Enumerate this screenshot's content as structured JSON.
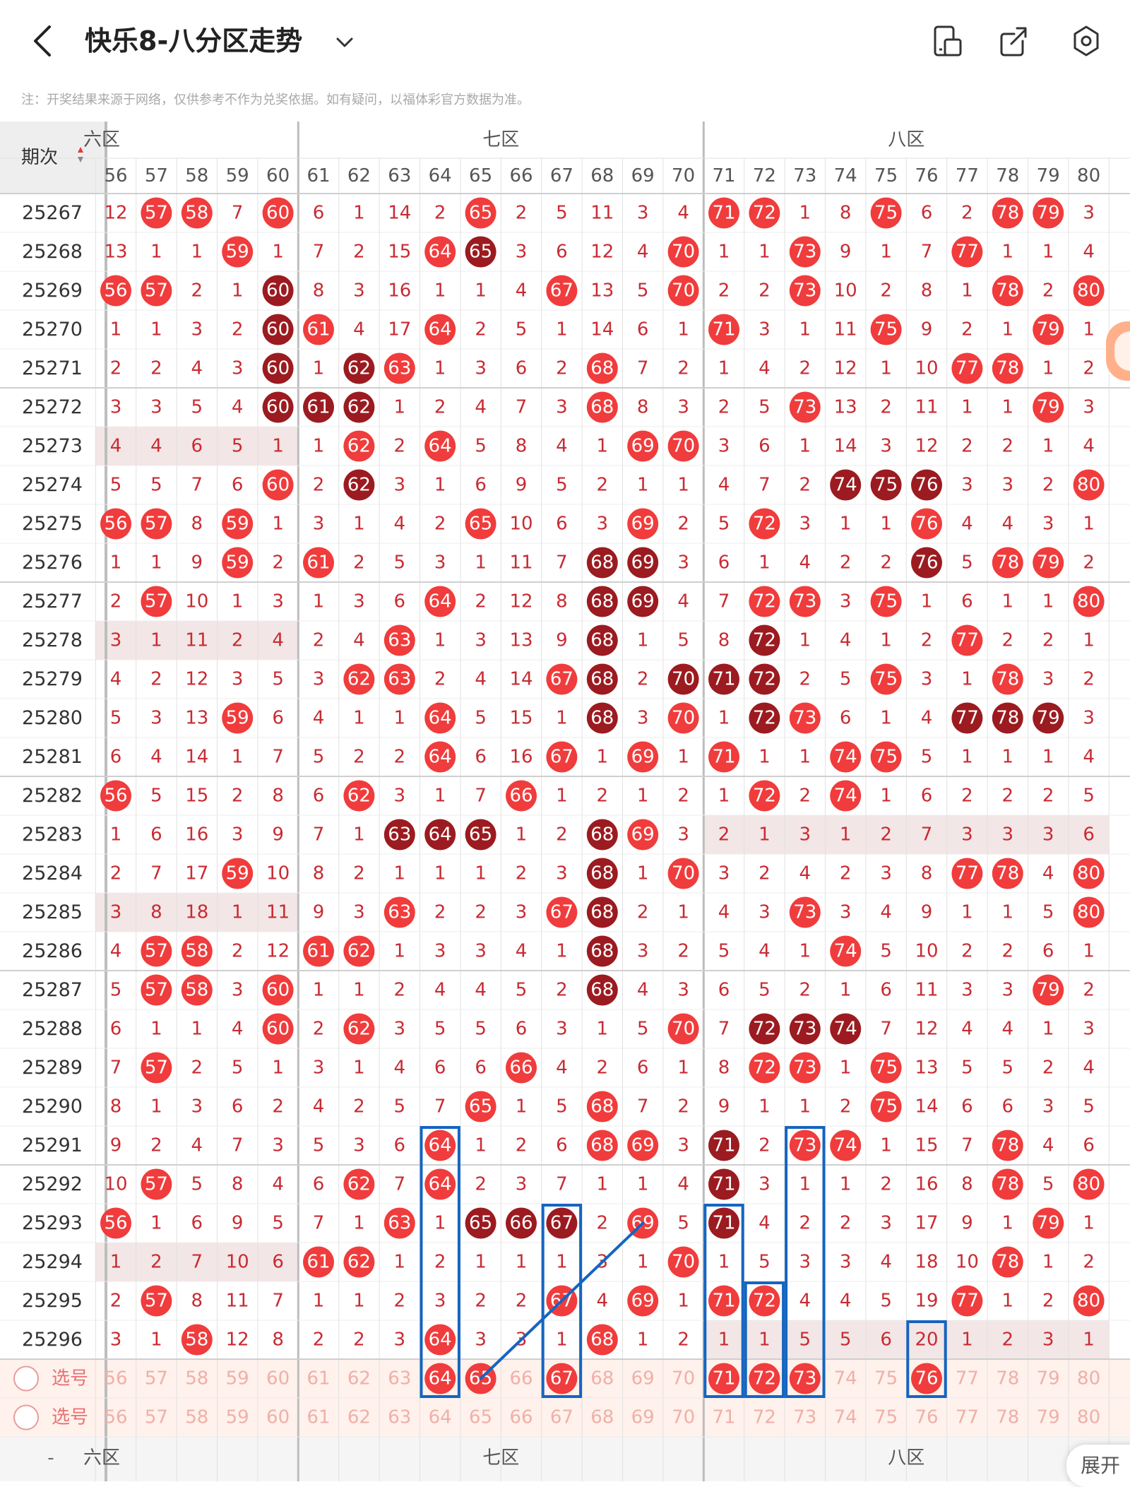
{
  "header": {
    "title": "快乐8-八分区走势",
    "back_icon": "chevron-left-icon",
    "dropdown_icon": "chevron-down-icon",
    "actions": [
      {
        "name": "layout-toggle-button",
        "icon": "phone-layout-icon"
      },
      {
        "name": "share-button",
        "icon": "share-arrow-icon"
      },
      {
        "name": "settings-button",
        "icon": "settings-hexagon-icon"
      }
    ]
  },
  "disclaimer": "注：开奖结果来源于网络，仅供参考不作为兑奖依据。如有疑问，以福体彩官方数据为准。",
  "table": {
    "period_header": "期次",
    "zones": [
      {
        "label": "六区",
        "shown": "六区",
        "start": 56
      },
      {
        "label": "七区",
        "shown": "七区",
        "start": 61
      },
      {
        "label": "八区",
        "shown": "八区",
        "start": 71
      }
    ],
    "columns": [
      "56",
      "57",
      "58",
      "59",
      "60",
      "61",
      "62",
      "63",
      "64",
      "65",
      "66",
      "67",
      "68",
      "69",
      "70",
      "71",
      "72",
      "73",
      "74",
      "75",
      "76",
      "77",
      "78",
      "79",
      "80"
    ],
    "rows": [
      {
        "period": "25267",
        "cells": [
          "12",
          "57",
          "58",
          "7",
          "60",
          "6",
          "1",
          "14",
          "2",
          "65",
          "2",
          "5",
          "11",
          "3",
          "4",
          "71",
          "72",
          "1",
          "8",
          "75",
          "6",
          "2",
          "78",
          "79",
          "3"
        ]
      },
      {
        "period": "25268",
        "cells": [
          "13",
          "1",
          "1",
          "59",
          "1",
          "7",
          "2",
          "15",
          "64",
          "65",
          "3",
          "6",
          "12",
          "4",
          "70",
          "1",
          "1",
          "73",
          "9",
          "1",
          "7",
          "77",
          "1",
          "1",
          "4"
        ]
      },
      {
        "period": "25269",
        "cells": [
          "56",
          "57",
          "2",
          "1",
          "60",
          "8",
          "3",
          "16",
          "1",
          "1",
          "4",
          "67",
          "13",
          "5",
          "70",
          "2",
          "2",
          "73",
          "10",
          "2",
          "8",
          "1",
          "78",
          "2",
          "80"
        ]
      },
      {
        "period": "25270",
        "cells": [
          "1",
          "1",
          "3",
          "2",
          "60",
          "61",
          "4",
          "17",
          "64",
          "2",
          "5",
          "1",
          "14",
          "6",
          "1",
          "71",
          "3",
          "1",
          "11",
          "75",
          "9",
          "2",
          "1",
          "79",
          "1"
        ]
      },
      {
        "period": "25271",
        "cells": [
          "2",
          "2",
          "4",
          "3",
          "60",
          "1",
          "62",
          "63",
          "1",
          "3",
          "6",
          "2",
          "68",
          "7",
          "2",
          "1",
          "4",
          "2",
          "12",
          "1",
          "10",
          "77",
          "78",
          "1",
          "2"
        ]
      },
      {
        "period": "25272",
        "cells": [
          "3",
          "3",
          "5",
          "4",
          "60",
          "61",
          "62",
          "1",
          "2",
          "4",
          "7",
          "3",
          "68",
          "8",
          "3",
          "2",
          "5",
          "73",
          "13",
          "2",
          "11",
          "1",
          "1",
          "79",
          "3"
        ]
      },
      {
        "period": "25273",
        "cells": [
          "4",
          "4",
          "6",
          "5",
          "1",
          "1",
          "62",
          "2",
          "64",
          "5",
          "8",
          "4",
          "1",
          "69",
          "70",
          "3",
          "6",
          "1",
          "14",
          "3",
          "12",
          "2",
          "2",
          "1",
          "4"
        ]
      },
      {
        "period": "25274",
        "cells": [
          "5",
          "5",
          "7",
          "6",
          "60",
          "2",
          "62",
          "3",
          "1",
          "6",
          "9",
          "5",
          "2",
          "1",
          "1",
          "4",
          "7",
          "2",
          "74",
          "75",
          "76",
          "3",
          "3",
          "2",
          "80"
        ]
      },
      {
        "period": "25275",
        "cells": [
          "56",
          "57",
          "8",
          "59",
          "1",
          "3",
          "1",
          "4",
          "2",
          "65",
          "10",
          "6",
          "3",
          "69",
          "2",
          "5",
          "72",
          "3",
          "1",
          "1",
          "76",
          "4",
          "4",
          "3",
          "1"
        ]
      },
      {
        "period": "25276",
        "cells": [
          "1",
          "1",
          "9",
          "59",
          "2",
          "61",
          "2",
          "5",
          "3",
          "1",
          "11",
          "7",
          "68",
          "69",
          "3",
          "6",
          "1",
          "4",
          "2",
          "2",
          "76",
          "5",
          "78",
          "79",
          "2"
        ]
      },
      {
        "period": "25277",
        "cells": [
          "2",
          "57",
          "10",
          "1",
          "3",
          "1",
          "3",
          "6",
          "64",
          "2",
          "12",
          "8",
          "68",
          "69",
          "4",
          "7",
          "72",
          "73",
          "3",
          "75",
          "1",
          "6",
          "1",
          "1",
          "80"
        ]
      },
      {
        "period": "25278",
        "cells": [
          "3",
          "1",
          "11",
          "2",
          "4",
          "2",
          "4",
          "63",
          "1",
          "3",
          "13",
          "9",
          "68",
          "1",
          "5",
          "8",
          "72",
          "1",
          "4",
          "1",
          "2",
          "77",
          "2",
          "2",
          "1"
        ]
      },
      {
        "period": "25279",
        "cells": [
          "4",
          "2",
          "12",
          "3",
          "5",
          "3",
          "62",
          "63",
          "2",
          "4",
          "14",
          "67",
          "68",
          "2",
          "70",
          "71",
          "72",
          "2",
          "5",
          "75",
          "3",
          "1",
          "78",
          "3",
          "2"
        ]
      },
      {
        "period": "25280",
        "cells": [
          "5",
          "3",
          "13",
          "59",
          "6",
          "4",
          "1",
          "1",
          "64",
          "5",
          "15",
          "1",
          "68",
          "3",
          "70",
          "1",
          "72",
          "73",
          "6",
          "1",
          "4",
          "77",
          "78",
          "79",
          "3"
        ]
      },
      {
        "period": "25281",
        "cells": [
          "6",
          "4",
          "14",
          "1",
          "7",
          "5",
          "2",
          "2",
          "64",
          "6",
          "16",
          "67",
          "1",
          "69",
          "1",
          "71",
          "1",
          "1",
          "74",
          "75",
          "5",
          "1",
          "1",
          "1",
          "4"
        ]
      },
      {
        "period": "25282",
        "cells": [
          "56",
          "5",
          "15",
          "2",
          "8",
          "6",
          "62",
          "3",
          "1",
          "7",
          "66",
          "1",
          "2",
          "1",
          "2",
          "1",
          "72",
          "2",
          "74",
          "1",
          "6",
          "2",
          "2",
          "2",
          "5"
        ]
      },
      {
        "period": "25283",
        "cells": [
          "1",
          "6",
          "16",
          "3",
          "9",
          "7",
          "1",
          "63",
          "64",
          "65",
          "1",
          "2",
          "68",
          "69",
          "3",
          "2",
          "1",
          "3",
          "1",
          "2",
          "7",
          "3",
          "3",
          "3",
          "6"
        ]
      },
      {
        "period": "25284",
        "cells": [
          "2",
          "7",
          "17",
          "59",
          "10",
          "8",
          "2",
          "1",
          "1",
          "1",
          "2",
          "3",
          "68",
          "1",
          "70",
          "3",
          "2",
          "4",
          "2",
          "3",
          "8",
          "77",
          "78",
          "4",
          "80"
        ]
      },
      {
        "period": "25285",
        "cells": [
          "3",
          "8",
          "18",
          "1",
          "11",
          "9",
          "3",
          "63",
          "2",
          "2",
          "3",
          "67",
          "68",
          "2",
          "1",
          "4",
          "3",
          "73",
          "3",
          "4",
          "9",
          "1",
          "1",
          "5",
          "80"
        ]
      },
      {
        "period": "25286",
        "cells": [
          "4",
          "57",
          "58",
          "2",
          "12",
          "61",
          "62",
          "1",
          "3",
          "3",
          "4",
          "1",
          "68",
          "3",
          "2",
          "5",
          "4",
          "1",
          "74",
          "5",
          "10",
          "2",
          "2",
          "6",
          "1"
        ]
      },
      {
        "period": "25287",
        "cells": [
          "5",
          "57",
          "58",
          "3",
          "60",
          "1",
          "1",
          "2",
          "4",
          "4",
          "5",
          "2",
          "68",
          "4",
          "3",
          "6",
          "5",
          "2",
          "1",
          "6",
          "11",
          "3",
          "3",
          "79",
          "2"
        ]
      },
      {
        "period": "25288",
        "cells": [
          "6",
          "1",
          "1",
          "4",
          "60",
          "2",
          "62",
          "3",
          "5",
          "5",
          "6",
          "3",
          "1",
          "5",
          "70",
          "7",
          "72",
          "73",
          "74",
          "7",
          "12",
          "4",
          "4",
          "1",
          "3"
        ]
      },
      {
        "period": "25289",
        "cells": [
          "7",
          "57",
          "2",
          "5",
          "1",
          "3",
          "1",
          "4",
          "6",
          "6",
          "66",
          "4",
          "2",
          "6",
          "1",
          "8",
          "72",
          "73",
          "1",
          "75",
          "13",
          "5",
          "5",
          "2",
          "4"
        ]
      },
      {
        "period": "25290",
        "cells": [
          "8",
          "1",
          "3",
          "6",
          "2",
          "4",
          "2",
          "5",
          "7",
          "65",
          "1",
          "5",
          "68",
          "7",
          "2",
          "9",
          "1",
          "1",
          "2",
          "75",
          "14",
          "6",
          "6",
          "3",
          "5"
        ]
      },
      {
        "period": "25291",
        "cells": [
          "9",
          "2",
          "4",
          "7",
          "3",
          "5",
          "3",
          "6",
          "64",
          "1",
          "2",
          "6",
          "68",
          "69",
          "3",
          "71",
          "2",
          "73",
          "74",
          "1",
          "15",
          "7",
          "78",
          "4",
          "6"
        ]
      },
      {
        "period": "25292",
        "cells": [
          "10",
          "57",
          "5",
          "8",
          "4",
          "6",
          "62",
          "7",
          "64",
          "2",
          "3",
          "7",
          "1",
          "1",
          "4",
          "71",
          "3",
          "1",
          "1",
          "2",
          "16",
          "8",
          "78",
          "5",
          "80"
        ]
      },
      {
        "period": "25293",
        "cells": [
          "56",
          "1",
          "6",
          "9",
          "5",
          "7",
          "1",
          "63",
          "1",
          "65",
          "66",
          "67",
          "2",
          "69",
          "5",
          "71",
          "4",
          "2",
          "2",
          "3",
          "17",
          "9",
          "1",
          "79",
          "1"
        ]
      },
      {
        "period": "25294",
        "cells": [
          "1",
          "2",
          "7",
          "10",
          "6",
          "61",
          "62",
          "1",
          "2",
          "1",
          "1",
          "1",
          "3",
          "1",
          "70",
          "1",
          "5",
          "3",
          "3",
          "4",
          "18",
          "10",
          "78",
          "1",
          "2"
        ]
      },
      {
        "period": "25295",
        "cells": [
          "2",
          "57",
          "8",
          "11",
          "7",
          "1",
          "1",
          "2",
          "3",
          "2",
          "2",
          "67",
          "4",
          "69",
          "1",
          "71",
          "72",
          "4",
          "4",
          "5",
          "19",
          "77",
          "1",
          "2",
          "80"
        ]
      },
      {
        "period": "25296",
        "cells": [
          "3",
          "1",
          "58",
          "12",
          "8",
          "2",
          "2",
          "3",
          "64",
          "3",
          "3",
          "1",
          "68",
          "1",
          "2",
          "1",
          "1",
          "5",
          "5",
          "6",
          "20",
          "1",
          "2",
          "3",
          "1"
        ]
      }
    ],
    "dark_hits": {
      "25268": [
        "65"
      ],
      "25269": [
        "60"
      ],
      "25270": [
        "60"
      ],
      "25271": [
        "60",
        "62"
      ],
      "25272": [
        "60",
        "61",
        "62"
      ],
      "25274": [
        "62",
        "74",
        "75",
        "76"
      ],
      "25276": [
        "68",
        "69",
        "76"
      ],
      "25277": [
        "68",
        "69"
      ],
      "25278": [
        "68",
        "72"
      ],
      "25279": [
        "68",
        "70",
        "71",
        "72"
      ],
      "25280": [
        "68",
        "72",
        "77",
        "78",
        "79"
      ],
      "25283": [
        "63",
        "64",
        "65",
        "68"
      ],
      "25284": [
        "68"
      ],
      "25285": [
        "68"
      ],
      "25286": [
        "68"
      ],
      "25287": [
        "68"
      ],
      "25288": [
        "72",
        "73",
        "74"
      ],
      "25291": [
        "71"
      ],
      "25292": [
        "71"
      ],
      "25293": [
        "65",
        "66",
        "67",
        "71"
      ]
    },
    "selection_rows": [
      {
        "label": "选号",
        "selected": [
          "64",
          "65",
          "67",
          "71",
          "72",
          "73",
          "76"
        ]
      },
      {
        "label": "选号",
        "selected": []
      }
    ],
    "bottom_zone_labels": [
      "六区",
      "七区",
      "八区"
    ]
  },
  "more_button": "展开",
  "colors": {
    "hit_red": "#f03c3c",
    "hit_dark": "#9b1b20",
    "miss_text": "#c92b33",
    "header_bg": "#eeeeee",
    "select_bg": "#fff1ec",
    "annotation_blue": "#1565c0"
  }
}
